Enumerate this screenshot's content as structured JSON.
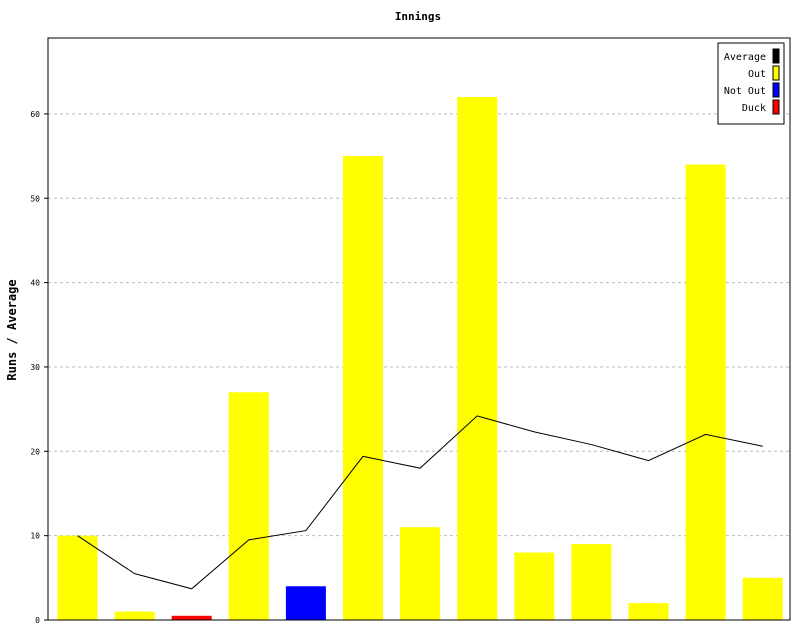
{
  "chart_data": {
    "type": "bar",
    "title": "Innings",
    "xlabel": "",
    "ylabel": "Runs / Average",
    "ylim": [
      0,
      69
    ],
    "yticks": [
      0,
      10,
      20,
      30,
      40,
      50,
      60
    ],
    "grid": true,
    "legend_position": "top-right",
    "legend": [
      {
        "label": "Average",
        "color": "#000000"
      },
      {
        "label": "Out",
        "color": "#ffff00"
      },
      {
        "label": "Not Out",
        "color": "#0000ff"
      },
      {
        "label": "Duck",
        "color": "#ff0000"
      }
    ],
    "innings": [
      {
        "runs": 10,
        "status": "Out"
      },
      {
        "runs": 1,
        "status": "Out"
      },
      {
        "runs": 0.5,
        "status": "Duck"
      },
      {
        "runs": 27,
        "status": "Out"
      },
      {
        "runs": 4,
        "status": "Not Out"
      },
      {
        "runs": 55,
        "status": "Out"
      },
      {
        "runs": 11,
        "status": "Out"
      },
      {
        "runs": 62,
        "status": "Out"
      },
      {
        "runs": 8,
        "status": "Out"
      },
      {
        "runs": 9,
        "status": "Out"
      },
      {
        "runs": 2,
        "status": "Out"
      },
      {
        "runs": 54,
        "status": "Out"
      },
      {
        "runs": 5,
        "status": "Out"
      }
    ],
    "average": [
      10,
      5.5,
      3.7,
      9.5,
      10.6,
      19.4,
      18.0,
      24.2,
      22.3,
      20.8,
      18.9,
      22.0,
      20.6
    ]
  }
}
